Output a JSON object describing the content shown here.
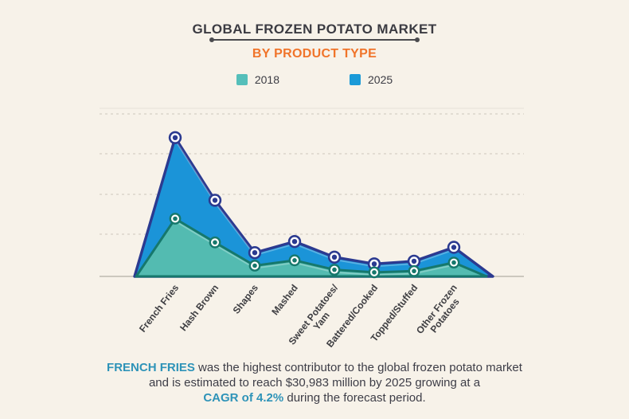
{
  "header": {
    "title": "GLOBAL FROZEN POTATO MARKET",
    "subtitle": "BY PRODUCT TYPE"
  },
  "legend": {
    "items": [
      {
        "label": "2018",
        "color": "#55bfba"
      },
      {
        "label": "2025",
        "color": "#1b9ad8"
      }
    ]
  },
  "chart_data": {
    "type": "area",
    "title": "GLOBAL FROZEN POTATO MARKET",
    "subtitle": "BY PRODUCT TYPE",
    "xlabel": "",
    "ylabel": "",
    "ylim": [
      0,
      38600
    ],
    "grid": "horizontal-dashed",
    "legend_position": "top",
    "categories": [
      "French Fries",
      "Hash Brown",
      "Shapes",
      "Mashed",
      "Sweet Potatoes/\nYam",
      "Battered/Cooked",
      "Topped/Stuffed",
      "Other Frozen\nPotatoes"
    ],
    "series": [
      {
        "name": "2018",
        "fill": "#53bbb1",
        "stroke": "#16786c",
        "values": [
          12900,
          7600,
          2400,
          3600,
          1500,
          900,
          1200,
          3100
        ]
      },
      {
        "name": "2025",
        "fill": "#1b94d8",
        "stroke": "#2b3a90",
        "values": [
          30983,
          17000,
          5300,
          7800,
          4300,
          2800,
          3400,
          6500
        ]
      }
    ]
  },
  "footnote": {
    "line1_highlight": "FRENCH FRIES",
    "line1_text": " was the highest contributor to the global frozen potato market",
    "line2_text": "and is estimated to reach $30,983 million by 2025 growing at a",
    "line3_highlight": "CAGR of 4.2%",
    "line3_text": " during the forecast period."
  },
  "colors": {
    "background": "#f7f2e9",
    "title": "#3b3b42",
    "subtitle_accent": "#f0742a",
    "footnote_highlight": "#2e93b8",
    "gridline": "#ccc7bc",
    "axis_line": "#b3afa5"
  }
}
